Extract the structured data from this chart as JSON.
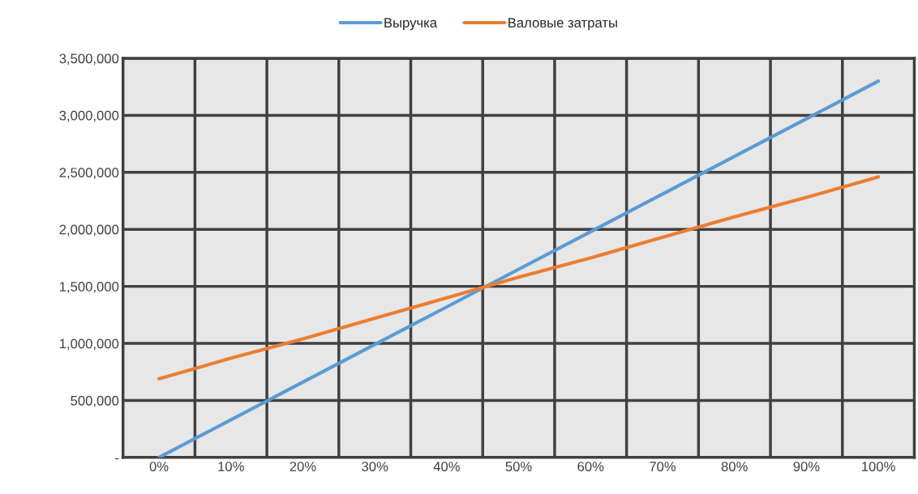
{
  "chart_data": {
    "type": "line",
    "categories": [
      "0%",
      "10%",
      "20%",
      "30%",
      "40%",
      "50%",
      "60%",
      "70%",
      "80%",
      "90%",
      "100%"
    ],
    "series": [
      {
        "name": "Выручка",
        "color": "#5b9bd5",
        "values": [
          0,
          330000,
          660000,
          990000,
          1320000,
          1650000,
          1980000,
          2310000,
          2640000,
          2970000,
          3300000
        ]
      },
      {
        "name": "Валовые затраты",
        "color": "#ed7d31",
        "values": [
          690000,
          870000,
          1040000,
          1220000,
          1400000,
          1580000,
          1750000,
          1930000,
          2110000,
          2280000,
          2460000
        ]
      }
    ],
    "ylim": [
      0,
      3500000
    ],
    "yticks": [
      {
        "value": 0,
        "label": "-"
      },
      {
        "value": 500000,
        "label": "500,000"
      },
      {
        "value": 1000000,
        "label": "1,000,000"
      },
      {
        "value": 1500000,
        "label": "1,500,000"
      },
      {
        "value": 2000000,
        "label": "2,000,000"
      },
      {
        "value": 2500000,
        "label": "2,500,000"
      },
      {
        "value": 3000000,
        "label": "3,000,000"
      },
      {
        "value": 3500000,
        "label": "3,500,000"
      }
    ],
    "grid": true,
    "legend": "top",
    "marker": "none",
    "line_style": "solid"
  }
}
